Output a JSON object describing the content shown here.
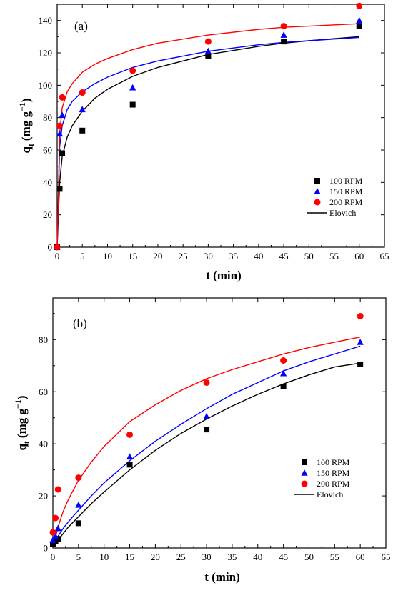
{
  "chart_data": [
    {
      "type": "scatter",
      "panel_label": "(a)",
      "xlabel": "t (min)",
      "ylabel_main": "q",
      "ylabel_sub": "t",
      "ylabel_unit": "(mg g",
      "ylabel_exp": "−1",
      "ylabel_close": ")",
      "xlim": [
        0,
        65
      ],
      "ylim": [
        0,
        150
      ],
      "xticks": [
        0,
        5,
        10,
        15,
        20,
        25,
        30,
        35,
        40,
        45,
        50,
        55,
        60,
        65
      ],
      "yticks": [
        0,
        20,
        40,
        60,
        80,
        100,
        120,
        140
      ],
      "legend_position": "lower-right",
      "series": [
        {
          "name": "100 RPM",
          "marker": "square",
          "color": "#000000",
          "x": [
            0,
            0.5,
            1,
            5,
            15,
            30,
            45,
            60
          ],
          "y": [
            0,
            36,
            58,
            72,
            88,
            118,
            127,
            136.5
          ]
        },
        {
          "name": "150 RPM",
          "marker": "triangle",
          "color": "#0000ff",
          "x": [
            0,
            0.5,
            1,
            5,
            15,
            30,
            45,
            60
          ],
          "y": [
            0,
            70,
            81.5,
            85,
            98.5,
            121,
            131,
            140
          ]
        },
        {
          "name": "200 RPM",
          "marker": "circle",
          "color": "#ff0000",
          "x": [
            0,
            0.5,
            1,
            5,
            15,
            30,
            45,
            60
          ],
          "y": [
            0,
            75,
            92.5,
            95.5,
            109,
            127,
            136.5,
            149
          ]
        }
      ],
      "fits": [
        {
          "name": "Elovich",
          "color": "#000000",
          "x": [
            0,
            0.5,
            1,
            2,
            3,
            5,
            7.5,
            10,
            15,
            20,
            30,
            40,
            45,
            50,
            60
          ],
          "y": [
            0,
            40,
            56,
            68,
            75,
            84,
            92,
            97.5,
            105.5,
            111,
            119,
            124,
            126,
            127.5,
            130
          ]
        },
        {
          "name": "",
          "color": "#0000ff",
          "x": [
            0,
            0.5,
            1,
            2,
            3,
            5,
            7.5,
            10,
            15,
            20,
            30,
            40,
            45,
            50,
            60
          ],
          "y": [
            0,
            62,
            75,
            85,
            90,
            96,
            101,
            105,
            111,
            115,
            121,
            125,
            126.5,
            127.5,
            129.5
          ]
        },
        {
          "name": "",
          "color": "#ff0000",
          "x": [
            0,
            0.5,
            1,
            2,
            3,
            5,
            7.5,
            10,
            15,
            20,
            30,
            40,
            45,
            50,
            60
          ],
          "y": [
            0,
            70,
            86,
            96,
            101,
            108,
            113,
            116.5,
            122,
            126,
            131,
            134.5,
            135.8,
            136.5,
            138
          ]
        }
      ],
      "legend": [
        {
          "label": "100 RPM",
          "kind": "square",
          "color": "#000000"
        },
        {
          "label": "150 RPM",
          "kind": "triangle",
          "color": "#0000ff"
        },
        {
          "label": "200 RPM",
          "kind": "circle",
          "color": "#ff0000"
        },
        {
          "label": "Elovich",
          "kind": "line",
          "color": "#000000"
        }
      ]
    },
    {
      "type": "scatter",
      "panel_label": "(b)",
      "xlabel": "t (min)",
      "ylabel_main": "q",
      "ylabel_sub": "t",
      "ylabel_unit": "(mg g",
      "ylabel_exp": "−1",
      "ylabel_close": ")",
      "xlim": [
        0,
        65
      ],
      "ylim": [
        0,
        96
      ],
      "xticks": [
        0,
        5,
        10,
        15,
        20,
        25,
        30,
        35,
        40,
        45,
        50,
        55,
        60,
        65
      ],
      "yticks": [
        0,
        20,
        40,
        60,
        80
      ],
      "legend_position": "lower-right",
      "series": [
        {
          "name": "100 RPM",
          "marker": "square",
          "color": "#000000",
          "x": [
            0,
            0.5,
            1,
            5,
            15,
            30,
            45,
            60
          ],
          "y": [
            1.5,
            2.5,
            3.5,
            9.5,
            32,
            45.5,
            62,
            70.5
          ]
        },
        {
          "name": "150 RPM",
          "marker": "triangle",
          "color": "#0000ff",
          "x": [
            0,
            0.5,
            1,
            5,
            15,
            30,
            45,
            60
          ],
          "y": [
            3,
            4.5,
            7.5,
            16.5,
            35,
            50.5,
            67,
            79
          ]
        },
        {
          "name": "200 RPM",
          "marker": "circle",
          "color": "#ff0000",
          "x": [
            0,
            0.5,
            1,
            5,
            15,
            30,
            45,
            60
          ],
          "y": [
            6,
            11.5,
            22.5,
            27,
            43.5,
            63.5,
            72,
            89
          ]
        }
      ],
      "fits": [
        {
          "name": "Elovich",
          "color": "#000000",
          "x": [
            0,
            1,
            2,
            3,
            5,
            7.5,
            10,
            15,
            20,
            25,
            30,
            35,
            40,
            45,
            50,
            55,
            60
          ],
          "y": [
            0,
            3,
            5.5,
            8,
            12,
            17,
            21.5,
            30,
            37.5,
            44,
            49.5,
            54.5,
            59,
            63,
            66.5,
            69.5,
            71
          ]
        },
        {
          "name": "",
          "color": "#0000ff",
          "x": [
            0,
            1,
            2,
            3,
            5,
            7.5,
            10,
            15,
            20,
            25,
            30,
            35,
            40,
            45,
            50,
            55,
            60
          ],
          "y": [
            0,
            4.5,
            7.5,
            10,
            14.5,
            20,
            25,
            33.5,
            41,
            47.5,
            53.5,
            59,
            63.5,
            68,
            71.5,
            74.5,
            77.5
          ]
        },
        {
          "name": "",
          "color": "#ff0000",
          "x": [
            0,
            1,
            2,
            3,
            5,
            7.5,
            10,
            15,
            20,
            25,
            30,
            35,
            40,
            45,
            50,
            55,
            60
          ],
          "y": [
            0,
            8,
            14,
            18.5,
            26,
            33,
            39,
            48.5,
            55,
            60.5,
            65,
            68.5,
            71.5,
            74.5,
            77,
            79,
            81
          ]
        }
      ],
      "legend": [
        {
          "label": "100 RPM",
          "kind": "square",
          "color": "#000000"
        },
        {
          "label": "150 RPM",
          "kind": "triangle",
          "color": "#0000ff"
        },
        {
          "label": "200 RPM",
          "kind": "circle",
          "color": "#ff0000"
        },
        {
          "label": "Elovich",
          "kind": "line",
          "color": "#000000"
        }
      ]
    }
  ]
}
